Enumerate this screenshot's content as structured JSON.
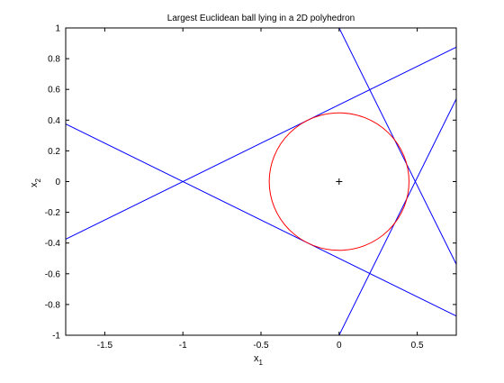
{
  "chart_data": {
    "type": "line",
    "title": "Largest Euclidean ball lying in a 2D polyhedron",
    "xlabel": "x",
    "xlabel_subscript": "1",
    "ylabel": "x",
    "ylabel_subscript": "2",
    "xlim": [
      -1.75,
      0.75
    ],
    "ylim": [
      -1,
      1
    ],
    "xticks": [
      -1.5,
      -1,
      -0.5,
      0,
      0.5
    ],
    "xtick_labels": [
      "-1.5",
      "-1",
      "-0.5",
      "0",
      "0.5"
    ],
    "yticks": [
      -1,
      -0.8,
      -0.6,
      -0.4,
      -0.2,
      0,
      0.2,
      0.4,
      0.6,
      0.8,
      1
    ],
    "ytick_labels": [
      "-1",
      "-0.8",
      "-0.6",
      "-0.4",
      "-0.2",
      "0",
      "0.2",
      "0.4",
      "0.6",
      "0.8",
      "1"
    ],
    "grid": false,
    "colors": {
      "lines": "#0000ff",
      "circle": "#ff0000",
      "center": "#000000",
      "axes": "#000000"
    },
    "lines": [
      {
        "x": [
          -1.75,
          0.75
        ],
        "y": [
          -0.375,
          0.875
        ]
      },
      {
        "x": [
          -1.75,
          0.75
        ],
        "y": [
          0.375,
          -0.875
        ]
      },
      {
        "x": [
          0,
          0.75
        ],
        "y": [
          1,
          -0.5385
        ]
      },
      {
        "x": [
          0,
          0.75
        ],
        "y": [
          -1,
          0.5385
        ]
      }
    ],
    "circle": {
      "center": [
        0,
        0
      ],
      "radius": 0.4473
    },
    "center_marker": {
      "x": 0,
      "y": 0,
      "symbol": "+"
    }
  }
}
